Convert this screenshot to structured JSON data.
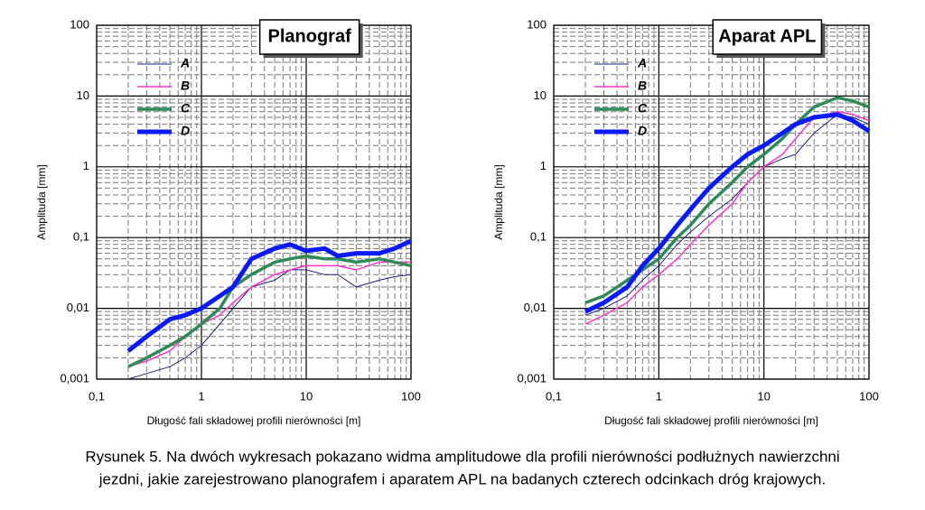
{
  "chart_data": [
    {
      "type": "line",
      "title": "Planograf",
      "xlabel": "Długość fali składowej profili nierówności  [m]",
      "ylabel": "Amplituda  [mm]",
      "xscale": "log",
      "yscale": "log",
      "grid": true,
      "minor_grid": true,
      "legend": "upper left",
      "xlim": [
        0.1,
        100
      ],
      "ylim": [
        0.001,
        100
      ],
      "xticks": [
        {
          "value": 0.1,
          "label": "0,1"
        },
        1,
        10,
        100
      ],
      "yticks": [
        {
          "value": 0.001,
          "label": "0,001"
        },
        {
          "value": 0.01,
          "label": "0,01"
        },
        {
          "value": 0.1,
          "label": "0,1"
        },
        1,
        10,
        100
      ],
      "x": [
        0.2,
        0.3,
        0.5,
        0.7,
        1,
        1.5,
        2,
        3,
        5,
        7,
        10,
        15,
        20,
        30,
        50,
        70,
        100
      ],
      "series": [
        {
          "name": "A",
          "color": "#1a237e",
          "width": 1,
          "values": [
            0.001,
            0.0012,
            0.0015,
            0.002,
            0.003,
            0.006,
            0.01,
            0.02,
            0.025,
            0.035,
            0.035,
            0.03,
            0.03,
            0.02,
            0.025,
            0.028,
            0.03
          ]
        },
        {
          "name": "B",
          "color": "#ff33cc",
          "width": 1.5,
          "values": [
            0.0015,
            0.0018,
            0.0025,
            0.004,
            0.006,
            0.008,
            0.012,
            0.02,
            0.03,
            0.035,
            0.04,
            0.04,
            0.04,
            0.035,
            0.045,
            0.045,
            0.045
          ]
        },
        {
          "name": "C",
          "color": "#2e8b57",
          "width": 3.5,
          "values": [
            0.0015,
            0.002,
            0.003,
            0.004,
            0.006,
            0.01,
            0.02,
            0.03,
            0.045,
            0.05,
            0.055,
            0.05,
            0.05,
            0.045,
            0.05,
            0.045,
            0.04
          ]
        },
        {
          "name": "D",
          "color": "#0a1aff",
          "width": 5,
          "values": [
            0.0025,
            0.004,
            0.007,
            0.008,
            0.01,
            0.015,
            0.02,
            0.05,
            0.07,
            0.08,
            0.065,
            0.07,
            0.055,
            0.06,
            0.06,
            0.07,
            0.09
          ]
        }
      ]
    },
    {
      "type": "line",
      "title": "Aparat APL",
      "xlabel": "Długość fali składowej profili nierówności  [m]",
      "ylabel": "Amplituda  [mm]",
      "xscale": "log",
      "yscale": "log",
      "grid": true,
      "minor_grid": true,
      "legend": "upper left",
      "xlim": [
        0.1,
        100
      ],
      "ylim": [
        0.001,
        100
      ],
      "xticks": [
        {
          "value": 0.1,
          "label": "0,1"
        },
        1,
        10,
        100
      ],
      "yticks": [
        {
          "value": 0.001,
          "label": "0,001"
        },
        {
          "value": 0.01,
          "label": "0,01"
        },
        {
          "value": 0.1,
          "label": "0,1"
        },
        1,
        10,
        100
      ],
      "x": [
        0.2,
        0.3,
        0.5,
        0.7,
        1,
        1.5,
        2,
        3,
        5,
        7,
        10,
        15,
        20,
        30,
        50,
        70,
        100
      ],
      "series": [
        {
          "name": "A",
          "color": "#1a237e",
          "width": 1,
          "values": [
            0.008,
            0.01,
            0.015,
            0.025,
            0.04,
            0.08,
            0.12,
            0.2,
            0.35,
            0.6,
            1,
            1.3,
            1.5,
            3,
            5.5,
            5,
            4
          ]
        },
        {
          "name": "B",
          "color": "#ff33cc",
          "width": 1.5,
          "values": [
            0.006,
            0.008,
            0.012,
            0.02,
            0.03,
            0.05,
            0.08,
            0.15,
            0.3,
            0.6,
            1,
            1.5,
            2.5,
            5,
            6,
            5.5,
            4.5
          ]
        },
        {
          "name": "C",
          "color": "#2e8b57",
          "width": 3.5,
          "values": [
            0.012,
            0.015,
            0.025,
            0.035,
            0.05,
            0.1,
            0.15,
            0.3,
            0.6,
            1,
            1.5,
            2.5,
            4,
            7,
            9.5,
            8.5,
            7
          ]
        },
        {
          "name": "D",
          "color": "#0a1aff",
          "width": 5,
          "values": [
            0.009,
            0.012,
            0.02,
            0.04,
            0.07,
            0.15,
            0.25,
            0.5,
            1,
            1.5,
            2,
            3,
            4,
            5,
            5.5,
            4.5,
            3.2
          ]
        }
      ]
    }
  ],
  "caption": [
    "Rysunek 5. Na dwóch wykresach pokazano widma amplitudowe dla profili nierówności podłużnych nawierzchni",
    "jezdni, jakie zarejestrowano planografem i aparatem APL na badanych czterech odcinkach dróg krajowych."
  ]
}
